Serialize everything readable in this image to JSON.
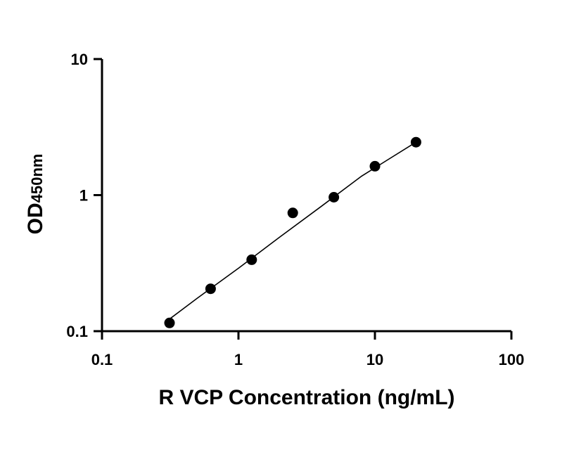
{
  "chart_data": {
    "type": "scatter",
    "xlabel": "R VCP Concentration (ng/mL)",
    "ylabel_main": "OD",
    "ylabel_sub": "450nm",
    "x_scale": "log",
    "y_scale": "log",
    "xlim": [
      0.1,
      100
    ],
    "ylim": [
      0.1,
      10
    ],
    "x_ticks": [
      {
        "value": 0.1,
        "label": "0.1"
      },
      {
        "value": 1,
        "label": "1"
      },
      {
        "value": 10,
        "label": "10"
      },
      {
        "value": 100,
        "label": "100"
      }
    ],
    "y_ticks": [
      {
        "value": 0.1,
        "label": "0.1"
      },
      {
        "value": 1,
        "label": "1"
      },
      {
        "value": 10,
        "label": "10"
      }
    ],
    "grid": false,
    "series": [
      {
        "x": [
          0.3125,
          0.625,
          1.25,
          2.5,
          5,
          10,
          20
        ],
        "y": [
          0.115,
          0.205,
          0.335,
          0.74,
          0.965,
          1.63,
          2.45
        ],
        "color": "#000000",
        "marker": "circle"
      }
    ],
    "fit_curve": {
      "x": [
        0.31,
        0.5,
        1,
        2,
        4,
        8,
        12,
        20
      ],
      "y": [
        0.122,
        0.175,
        0.29,
        0.49,
        0.82,
        1.38,
        1.78,
        2.45
      ],
      "color": "#000000"
    }
  }
}
